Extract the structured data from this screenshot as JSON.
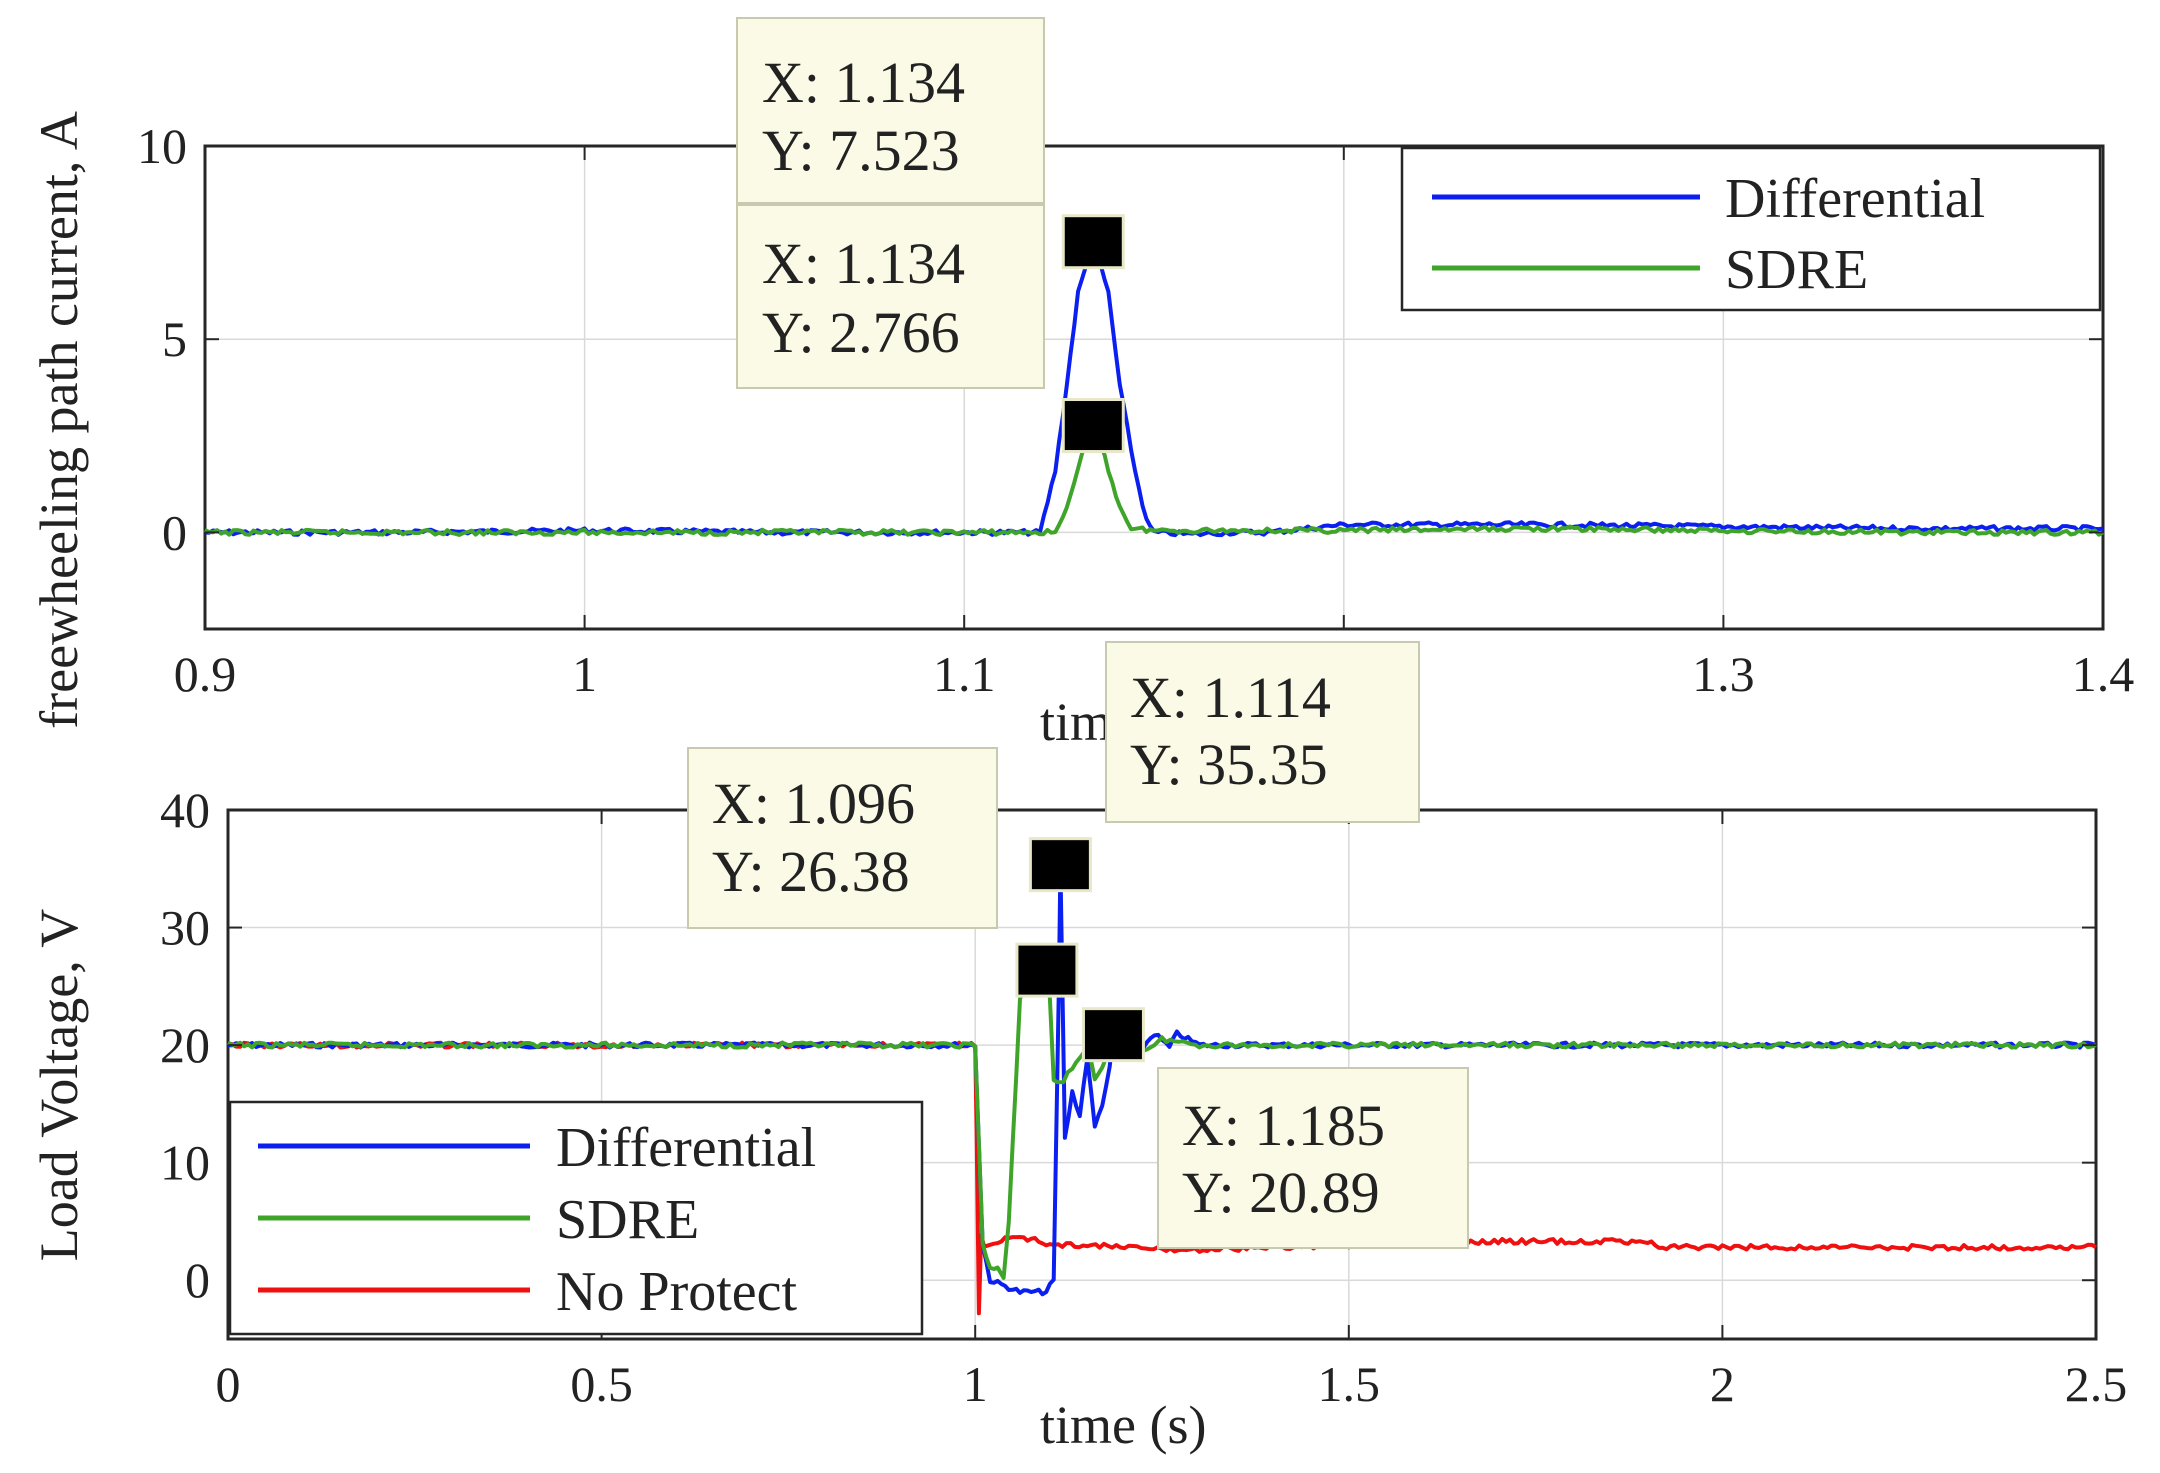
{
  "chart_data": [
    {
      "type": "line",
      "ylabel": "freewheeling path current, A",
      "xlabel": "time (s)",
      "xlim": [
        0.9,
        1.4
      ],
      "ylim": [
        -2.5,
        10
      ],
      "xticks": [
        0.9,
        1.0,
        1.1,
        1.2,
        1.3,
        1.4
      ],
      "xtick_labels": [
        "0.9",
        "1",
        "1.1",
        "",
        "1.3",
        "1.4"
      ],
      "yticks": [
        0,
        5,
        10
      ],
      "ytick_labels": [
        "0",
        "5",
        "10"
      ],
      "grid": true,
      "legend": "top-right",
      "colors": {
        "Differential": "#0a1ff0",
        "SDRE": "#3fa52a"
      },
      "series": [
        {
          "name": "Differential",
          "x": [
            0.9,
            0.95,
            1.0,
            1.05,
            1.1,
            1.12,
            1.124,
            1.127,
            1.13,
            1.134,
            1.138,
            1.141,
            1.145,
            1.148,
            1.15,
            1.16,
            1.17,
            1.18,
            1.2,
            1.25,
            1.3,
            1.35,
            1.4
          ],
          "y": [
            0.0,
            0.0,
            0.05,
            0.0,
            0.0,
            0.0,
            1.6,
            3.8,
            6.2,
            7.52,
            6.2,
            3.8,
            1.6,
            0.3,
            0.0,
            -0.05,
            0.0,
            0.0,
            0.2,
            0.2,
            0.15,
            0.1,
            0.1
          ]
        },
        {
          "name": "SDRE",
          "x": [
            0.9,
            0.95,
            1.0,
            1.05,
            1.1,
            1.124,
            1.128,
            1.131,
            1.134,
            1.137,
            1.14,
            1.144,
            1.15,
            1.2,
            1.25,
            1.3,
            1.35,
            1.4
          ],
          "y": [
            0.0,
            0.0,
            0.0,
            0.0,
            0.0,
            0.0,
            0.9,
            2.0,
            2.77,
            2.0,
            0.9,
            0.1,
            0.05,
            0.05,
            0.1,
            0.05,
            0.0,
            0.0
          ]
        }
      ],
      "datatips": [
        {
          "x_text": "X: 1.134",
          "y_text": "Y: 7.523",
          "x": 1.134,
          "y": 7.523
        },
        {
          "x_text": "X: 1.134",
          "y_text": "Y: 2.766",
          "x": 1.134,
          "y": 2.766
        }
      ],
      "legend_entries": [
        "Differential",
        "SDRE"
      ]
    },
    {
      "type": "line",
      "ylabel": "Load Voltage, V",
      "xlabel": "time (s)",
      "xlim": [
        0,
        2.5
      ],
      "ylim": [
        -5,
        40
      ],
      "xticks": [
        0,
        0.5,
        1.0,
        1.5,
        2.0,
        2.5
      ],
      "xtick_labels": [
        "0",
        "0.5",
        "1",
        "1.5",
        "2",
        "2.5"
      ],
      "yticks": [
        0,
        10,
        20,
        30,
        40
      ],
      "ytick_labels": [
        "0",
        "10",
        "20",
        "30",
        "40"
      ],
      "grid": true,
      "legend": "bottom-left",
      "colors": {
        "Differential": "#0a1ff0",
        "SDRE": "#3fa52a",
        "No Protect": "#f01010"
      },
      "series": [
        {
          "name": "Differential",
          "x": [
            0,
            0.5,
            1.0,
            1.003,
            1.01,
            1.02,
            1.04,
            1.06,
            1.08,
            1.095,
            1.105,
            1.112,
            1.114,
            1.12,
            1.13,
            1.14,
            1.15,
            1.16,
            1.17,
            1.18,
            1.185,
            1.2,
            1.22,
            1.24,
            1.26,
            1.27,
            1.3,
            1.5,
            2.0,
            2.5
          ],
          "y": [
            20,
            20,
            20,
            15,
            3,
            0,
            -0.5,
            -1,
            -1,
            -1,
            0,
            25,
            35.35,
            12,
            16,
            14,
            19,
            13,
            15,
            18,
            20.89,
            19,
            19.5,
            21,
            19.8,
            21,
            20,
            20,
            20,
            20
          ]
        },
        {
          "name": "SDRE",
          "x": [
            0,
            0.5,
            1.0,
            1.003,
            1.01,
            1.02,
            1.03,
            1.038,
            1.045,
            1.06,
            1.08,
            1.096,
            1.1,
            1.105,
            1.11,
            1.118,
            1.13,
            1.14,
            1.15,
            1.16,
            1.17,
            1.18,
            1.19,
            1.2,
            1.22,
            1.24,
            1.25,
            1.3,
            1.5,
            2.0,
            2.5
          ],
          "y": [
            20,
            20,
            20,
            15,
            3,
            1,
            1,
            0,
            5,
            24,
            26.38,
            26.38,
            24,
            17,
            17,
            17,
            18,
            19,
            20,
            17,
            18,
            19.5,
            20,
            20.89,
            19.5,
            20,
            20.5,
            20,
            20,
            20,
            20
          ]
        },
        {
          "name": "No Protect",
          "x": [
            0,
            0.5,
            1.0,
            1.002,
            1.005,
            1.008,
            1.012,
            1.02,
            1.04,
            1.06,
            1.08,
            1.1,
            1.15,
            1.2,
            1.25,
            1.3,
            1.4,
            1.5,
            1.6,
            1.7,
            1.8,
            1.9,
            1.92,
            2.0,
            2.2,
            2.5
          ],
          "y": [
            20,
            20,
            20,
            12,
            -3,
            4,
            3,
            3,
            3.5,
            3.5,
            3.5,
            3,
            3,
            2.8,
            2.6,
            2.6,
            2.8,
            3,
            3.2,
            3.3,
            3.3,
            3.3,
            2.8,
            2.8,
            2.8,
            2.8
          ]
        }
      ],
      "datatips": [
        {
          "x_text": "X: 1.114",
          "y_text": "Y: 35.35",
          "x": 1.114,
          "y": 35.35
        },
        {
          "x_text": "X: 1.096",
          "y_text": "Y: 26.38",
          "x": 1.096,
          "y": 26.38
        },
        {
          "x_text": "X: 1.185",
          "y_text": "Y: 20.89",
          "x": 1.185,
          "y": 20.89
        }
      ],
      "legend_entries": [
        "Differential",
        "SDRE",
        "No Protect"
      ]
    }
  ]
}
